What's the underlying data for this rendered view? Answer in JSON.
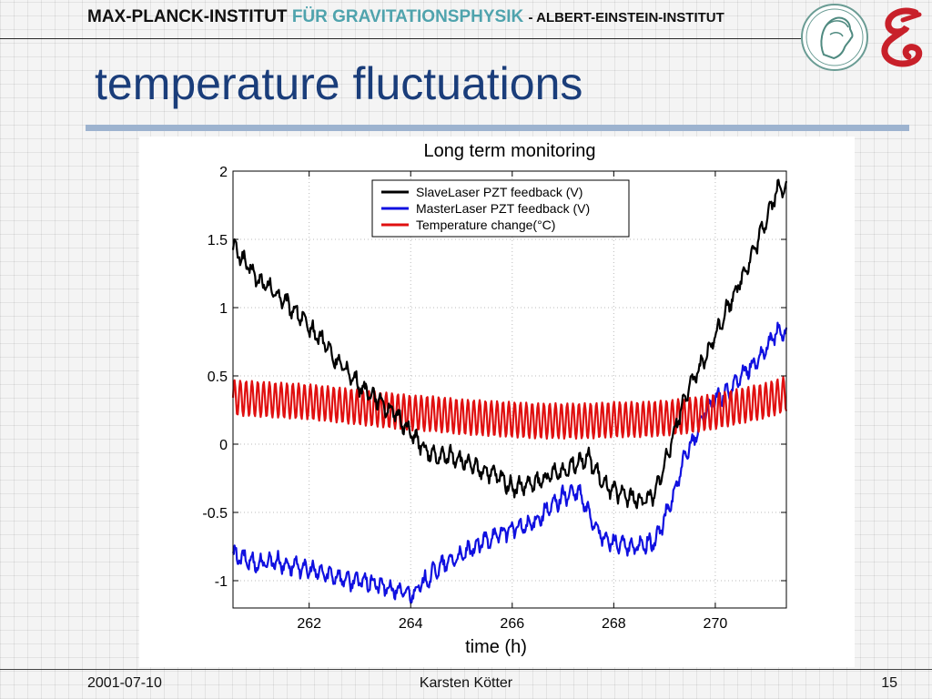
{
  "header": {
    "institute": "MAX-PLANCK-INSTITUT",
    "department": "FÜR GRAVITATIONSPHYSIK",
    "suffix": "- ALBERT-EINSTEIN-INSTITUT",
    "logo_left": "max-planck-minerva-logo",
    "logo_right": "aei-g-logo"
  },
  "title": "temperature fluctuations",
  "colors": {
    "title": "#1a3d7a",
    "department": "#4fa3ad",
    "title_bar": "#9db3cf",
    "logo_red": "#c8202a"
  },
  "chart_data": {
    "type": "line",
    "title": "Long term monitoring",
    "xlabel": "time (h)",
    "ylabel": "",
    "xlim": [
      260.5,
      271.4
    ],
    "ylim": [
      -1.2,
      2.0
    ],
    "xticks": [
      262,
      264,
      266,
      268,
      270
    ],
    "xtick_labels": [
      "262",
      "264",
      "266",
      "268",
      "270"
    ],
    "yticks": [
      -1,
      -0.5,
      0,
      0.5,
      1,
      1.5,
      2
    ],
    "ytick_labels": [
      "-1",
      "-0.5",
      "0",
      "0.5",
      "1",
      "1.5",
      "2"
    ],
    "grid": true,
    "legend_position": "top-right",
    "series": [
      {
        "name": "SlaveLaser PZT feedback (V)",
        "color": "#000000",
        "x": [
          260.5,
          260.8,
          261.0,
          261.3,
          261.5,
          261.8,
          262.0,
          262.3,
          262.5,
          262.8,
          263.0,
          263.3,
          263.5,
          263.8,
          264.0,
          264.3,
          264.5,
          264.8,
          265.0,
          265.3,
          265.5,
          265.8,
          266.0,
          266.3,
          266.5,
          266.8,
          267.0,
          267.3,
          267.5,
          267.8,
          268.0,
          268.3,
          268.5,
          268.8,
          269.0,
          269.2,
          269.4,
          269.6,
          269.8,
          270.0,
          270.3,
          270.5,
          270.8,
          271.0,
          271.2,
          271.4
        ],
        "y": [
          1.45,
          1.3,
          1.2,
          1.12,
          1.05,
          0.95,
          0.85,
          0.75,
          0.62,
          0.52,
          0.42,
          0.35,
          0.28,
          0.18,
          0.08,
          -0.05,
          -0.1,
          -0.08,
          -0.12,
          -0.18,
          -0.2,
          -0.25,
          -0.32,
          -0.3,
          -0.28,
          -0.22,
          -0.2,
          -0.12,
          -0.1,
          -0.3,
          -0.35,
          -0.38,
          -0.42,
          -0.38,
          -0.15,
          0.1,
          0.35,
          0.5,
          0.62,
          0.8,
          1.05,
          1.2,
          1.45,
          1.65,
          1.85,
          1.9
        ]
      },
      {
        "name": "MasterLaser PZT feedback (V)",
        "color": "#1010e0",
        "x": [
          260.5,
          260.8,
          261.0,
          261.3,
          261.5,
          261.8,
          262.0,
          262.3,
          262.5,
          262.8,
          263.0,
          263.3,
          263.5,
          263.8,
          264.0,
          264.3,
          264.5,
          264.8,
          265.0,
          265.3,
          265.5,
          265.8,
          266.0,
          266.3,
          266.5,
          266.8,
          267.0,
          267.3,
          267.5,
          267.8,
          268.0,
          268.3,
          268.5,
          268.8,
          269.0,
          269.2,
          269.4,
          269.6,
          269.8,
          270.0,
          270.3,
          270.5,
          270.8,
          271.0,
          271.2,
          271.4
        ],
        "y": [
          -0.82,
          -0.85,
          -0.88,
          -0.85,
          -0.88,
          -0.9,
          -0.92,
          -0.95,
          -0.96,
          -1.0,
          -1.0,
          -1.02,
          -1.05,
          -1.08,
          -1.1,
          -1.0,
          -0.92,
          -0.85,
          -0.82,
          -0.75,
          -0.7,
          -0.65,
          -0.62,
          -0.6,
          -0.55,
          -0.45,
          -0.38,
          -0.35,
          -0.5,
          -0.7,
          -0.72,
          -0.76,
          -0.75,
          -0.72,
          -0.55,
          -0.35,
          -0.1,
          0.05,
          0.25,
          0.32,
          0.4,
          0.5,
          0.6,
          0.7,
          0.82,
          0.8
        ]
      },
      {
        "name": "Temperature change(°C)",
        "color": "#e01010",
        "x": [
          260.5,
          261.0,
          261.5,
          262.0,
          262.5,
          263.0,
          263.5,
          264.0,
          264.5,
          265.0,
          265.5,
          266.0,
          266.5,
          267.0,
          267.5,
          268.0,
          268.5,
          269.0,
          269.5,
          270.0,
          270.5,
          271.0,
          271.4
        ],
        "y": [
          0.34,
          0.33,
          0.32,
          0.31,
          0.29,
          0.27,
          0.25,
          0.23,
          0.22,
          0.2,
          0.19,
          0.18,
          0.17,
          0.17,
          0.17,
          0.18,
          0.18,
          0.19,
          0.21,
          0.24,
          0.28,
          0.32,
          0.37
        ],
        "oscillation": {
          "amplitude": 0.13,
          "period": 0.115
        }
      }
    ]
  },
  "footer": {
    "date": "2001-07-10",
    "author": "Karsten Kötter",
    "page": "15"
  }
}
